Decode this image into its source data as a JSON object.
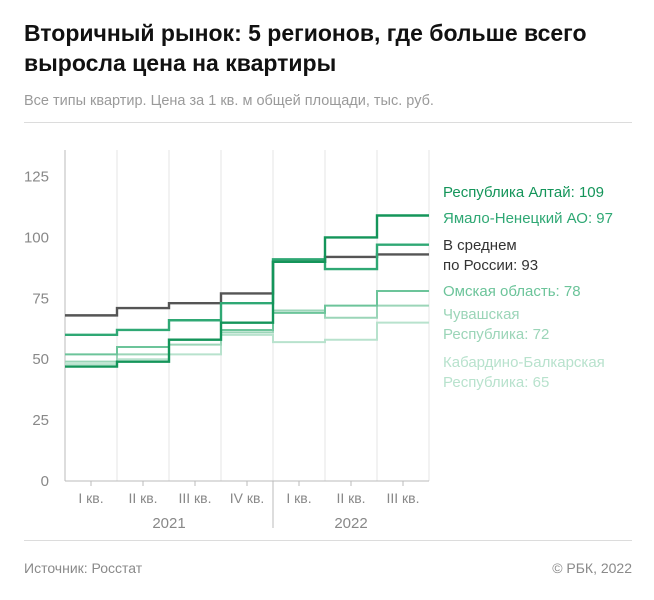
{
  "header": {
    "title": "Вторичный рынок: 5 регионов, где больше всего выросла цена на квартиры",
    "subtitle": "Все типы квартир. Цена за 1 кв. м общей площади, тыс. руб."
  },
  "footer": {
    "source": "Источник: Росстат",
    "copyright": "© РБК, 2022"
  },
  "chart_data": {
    "type": "line",
    "step": true,
    "x_categories": [
      "I кв.",
      "II кв.",
      "III кв.",
      "IV кв.",
      "I кв.",
      "II кв.",
      "III кв."
    ],
    "x_groups": [
      {
        "label": "2021",
        "quarters": [
          "I кв.",
          "II кв.",
          "III кв.",
          "IV кв."
        ]
      },
      {
        "label": "2022",
        "quarters": [
          "I кв.",
          "II кв.",
          "III кв."
        ]
      }
    ],
    "y_ticks": [
      0,
      25,
      50,
      75,
      100,
      125
    ],
    "ylim": [
      0,
      140
    ],
    "grid": "vertical lines at quarter boundaries",
    "series": [
      {
        "name": "Республика Алтай",
        "label": "Республика Алтай: 109",
        "color": "#14955a",
        "emphasis": true,
        "values": [
          47,
          49,
          58,
          65,
          90,
          100,
          109
        ]
      },
      {
        "name": "Ямало-Ненецкий АО",
        "label": "Ямало-Ненецкий АО: 97",
        "color": "#2fa874",
        "emphasis": true,
        "values": [
          60,
          62,
          66,
          73,
          91,
          87,
          97
        ]
      },
      {
        "name": "В среднем по России",
        "label": "В среднем\nпо России: 93",
        "color": "#555555",
        "emphasis": true,
        "values": [
          68,
          71,
          73,
          77,
          90,
          92,
          93
        ]
      },
      {
        "name": "Омская область",
        "label": "Омская область: 78",
        "color": "#6cc49a",
        "values": [
          52,
          55,
          58,
          62,
          69,
          72,
          78
        ]
      },
      {
        "name": "Чувашская Республика",
        "label": "Чувашская\nРеспублика: 72",
        "color": "#9bd5b8",
        "values": [
          49,
          52,
          56,
          61,
          70,
          67,
          72
        ]
      },
      {
        "name": "Кабардино-Балкарская Республика",
        "label": "Кабардино-Балкарская\nРеспублика: 65",
        "color": "#b8e2cd",
        "values": [
          48,
          50,
          52,
          60,
          57,
          58,
          65
        ]
      }
    ]
  }
}
